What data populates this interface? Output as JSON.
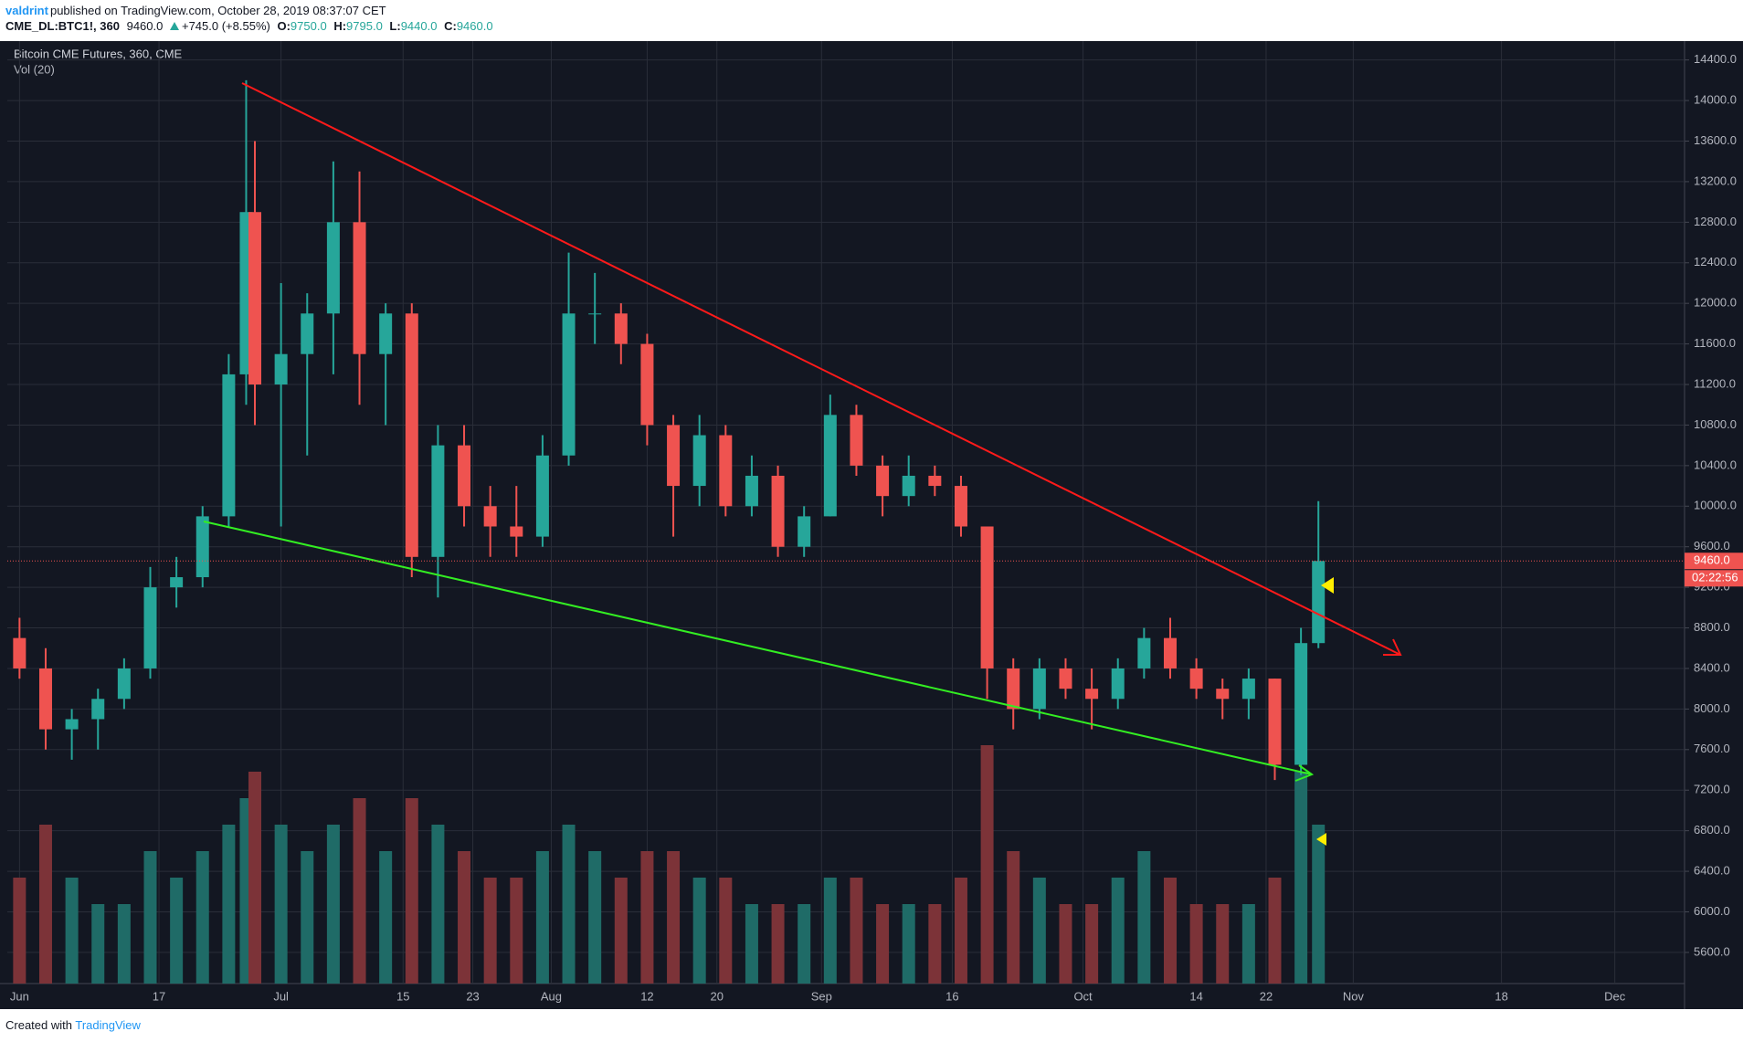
{
  "header": {
    "author": "valdrint",
    "published": "published on TradingView.com, October 28, 2019 08:37:07 CET",
    "symbol": "CME_DL:BTC1!, 360",
    "last": "9460.0",
    "change": "+745.0 (+8.55%)",
    "o_label": "O:",
    "o": "9750.0",
    "h_label": "H:",
    "h": "9795.0",
    "l_label": "L:",
    "l": "9440.0",
    "c_label": "C:",
    "c": "9460.0"
  },
  "chart_data": {
    "type": "candlestick",
    "title": "Bitcoin CME Futures, 360, CME",
    "subtitle": "Vol (20)",
    "up_color": "#26a69a",
    "down_color": "#ef5350",
    "volume_up_color": "#1f6b67",
    "volume_down_color": "#7c3338",
    "grid": true,
    "x": [
      0,
      3,
      6,
      9,
      12,
      15,
      18,
      21,
      24,
      26,
      27,
      30,
      33,
      36,
      39,
      42,
      45,
      48,
      51,
      54,
      57,
      60,
      63,
      66,
      69,
      72,
      75,
      78,
      81,
      84,
      87,
      90,
      93,
      96,
      99,
      102,
      105,
      108,
      111,
      114,
      117,
      120,
      123,
      126,
      129,
      132,
      135,
      138,
      141,
      144,
      147,
      149
    ],
    "open": [
      8700,
      8400,
      7800,
      7900,
      8100,
      8400,
      9200,
      9300,
      9900,
      11300,
      12900,
      11200,
      11500,
      11900,
      12800,
      11500,
      11900,
      9500,
      10600,
      10000,
      9800,
      9700,
      10500,
      11900,
      11900,
      11600,
      10800,
      10200,
      10700,
      10000,
      10300,
      9600,
      9900,
      10900,
      10400,
      10100,
      10300,
      10200,
      9800,
      8400,
      8000,
      8400,
      8200,
      8100,
      8400,
      8700,
      8400,
      8200,
      8100,
      8300,
      7450,
      8650
    ],
    "high": [
      8900,
      8600,
      8000,
      8200,
      8500,
      9400,
      9500,
      10000,
      11500,
      14200,
      13600,
      12200,
      12100,
      13400,
      13300,
      12000,
      12000,
      10800,
      10800,
      10200,
      10200,
      10700,
      12500,
      12300,
      12000,
      11700,
      10900,
      10900,
      10800,
      10500,
      10400,
      10000,
      11100,
      11000,
      10500,
      10500,
      10400,
      10300,
      9800,
      8500,
      8500,
      8500,
      8400,
      8500,
      8800,
      8900,
      8500,
      8300,
      8400,
      8300,
      8800,
      10050
    ],
    "low": [
      8300,
      7600,
      7500,
      7600,
      8000,
      8300,
      9000,
      9200,
      9800,
      11000,
      10800,
      9800,
      10500,
      11300,
      11000,
      10800,
      9300,
      9100,
      9800,
      9500,
      9500,
      9600,
      10400,
      11600,
      11400,
      10600,
      9700,
      10000,
      9900,
      9900,
      9500,
      9500,
      9900,
      10300,
      9900,
      10000,
      10100,
      9700,
      8100,
      7800,
      7900,
      8100,
      7800,
      8000,
      8300,
      8300,
      8100,
      7900,
      7900,
      7300,
      7350,
      8600
    ],
    "close": [
      8400,
      7800,
      7900,
      8100,
      8400,
      9200,
      9300,
      9900,
      11300,
      12900,
      11200,
      11500,
      11900,
      12800,
      11500,
      11900,
      9500,
      10600,
      10000,
      9800,
      9700,
      10500,
      11900,
      11900,
      11600,
      10800,
      10200,
      10700,
      10000,
      10300,
      9600,
      9900,
      10900,
      10400,
      10100,
      10300,
      10200,
      9800,
      8400,
      8000,
      8400,
      8200,
      8100,
      8400,
      8700,
      8400,
      8200,
      8100,
      8300,
      7450,
      8650,
      9460
    ],
    "volume": [
      4,
      6,
      4,
      3,
      3,
      5,
      4,
      5,
      6,
      7,
      8,
      6,
      5,
      6,
      7,
      5,
      7,
      6,
      5,
      4,
      4,
      5,
      6,
      5,
      4,
      5,
      5,
      4,
      4,
      3,
      3,
      3,
      4,
      4,
      3,
      3,
      3,
      4,
      9,
      5,
      4,
      3,
      3,
      4,
      5,
      4,
      3,
      3,
      3,
      4,
      8,
      6
    ],
    "vlim": [
      0,
      10
    ],
    "xlim": [
      -1.4,
      191
    ],
    "ylim": [
      5293,
      14586
    ],
    "xticks": [
      {
        "value": 0,
        "label": "Jun"
      },
      {
        "value": 16,
        "label": "17"
      },
      {
        "value": 30,
        "label": "Jul"
      },
      {
        "value": 44,
        "label": "15"
      },
      {
        "value": 52,
        "label": "23"
      },
      {
        "value": 61,
        "label": "Aug"
      },
      {
        "value": 72,
        "label": "12"
      },
      {
        "value": 80,
        "label": "20"
      },
      {
        "value": 92,
        "label": "Sep"
      },
      {
        "value": 107,
        "label": "16"
      },
      {
        "value": 122,
        "label": "Oct"
      },
      {
        "value": 135,
        "label": "14"
      },
      {
        "value": 143,
        "label": "22"
      },
      {
        "value": 153,
        "label": "Nov"
      },
      {
        "value": 170,
        "label": "18"
      },
      {
        "value": 183,
        "label": "Dec"
      }
    ],
    "yticks": [
      {
        "value": 5600,
        "label": "5600.0"
      },
      {
        "value": 6000,
        "label": "6000.0"
      },
      {
        "value": 6400,
        "label": "6400.0"
      },
      {
        "value": 6800,
        "label": "6800.0"
      },
      {
        "value": 7200,
        "label": "7200.0"
      },
      {
        "value": 7600,
        "label": "7600.0"
      },
      {
        "value": 8000,
        "label": "8000.0"
      },
      {
        "value": 8400,
        "label": "8400.0"
      },
      {
        "value": 8800,
        "label": "8800.0"
      },
      {
        "value": 9200,
        "label": "9200.0"
      },
      {
        "value": 9600,
        "label": "9600.0"
      },
      {
        "value": 10000,
        "label": "10000.0"
      },
      {
        "value": 10400,
        "label": "10400.0"
      },
      {
        "value": 10800,
        "label": "10800.0"
      },
      {
        "value": 11200,
        "label": "11200.0"
      },
      {
        "value": 11600,
        "label": "11600.0"
      },
      {
        "value": 12000,
        "label": "12000.0"
      },
      {
        "value": 12400,
        "label": "12400.0"
      },
      {
        "value": 12800,
        "label": "12800.0"
      },
      {
        "value": 13200,
        "label": "13200.0"
      },
      {
        "value": 13600,
        "label": "13600.0"
      },
      {
        "value": 14000,
        "label": "14000.0"
      },
      {
        "value": 14400,
        "label": "14400.0"
      }
    ],
    "last_price_label": "9460.0",
    "countdown": "02:22:56"
  },
  "footer": {
    "created": "Created with",
    "brand": "TradingView"
  }
}
